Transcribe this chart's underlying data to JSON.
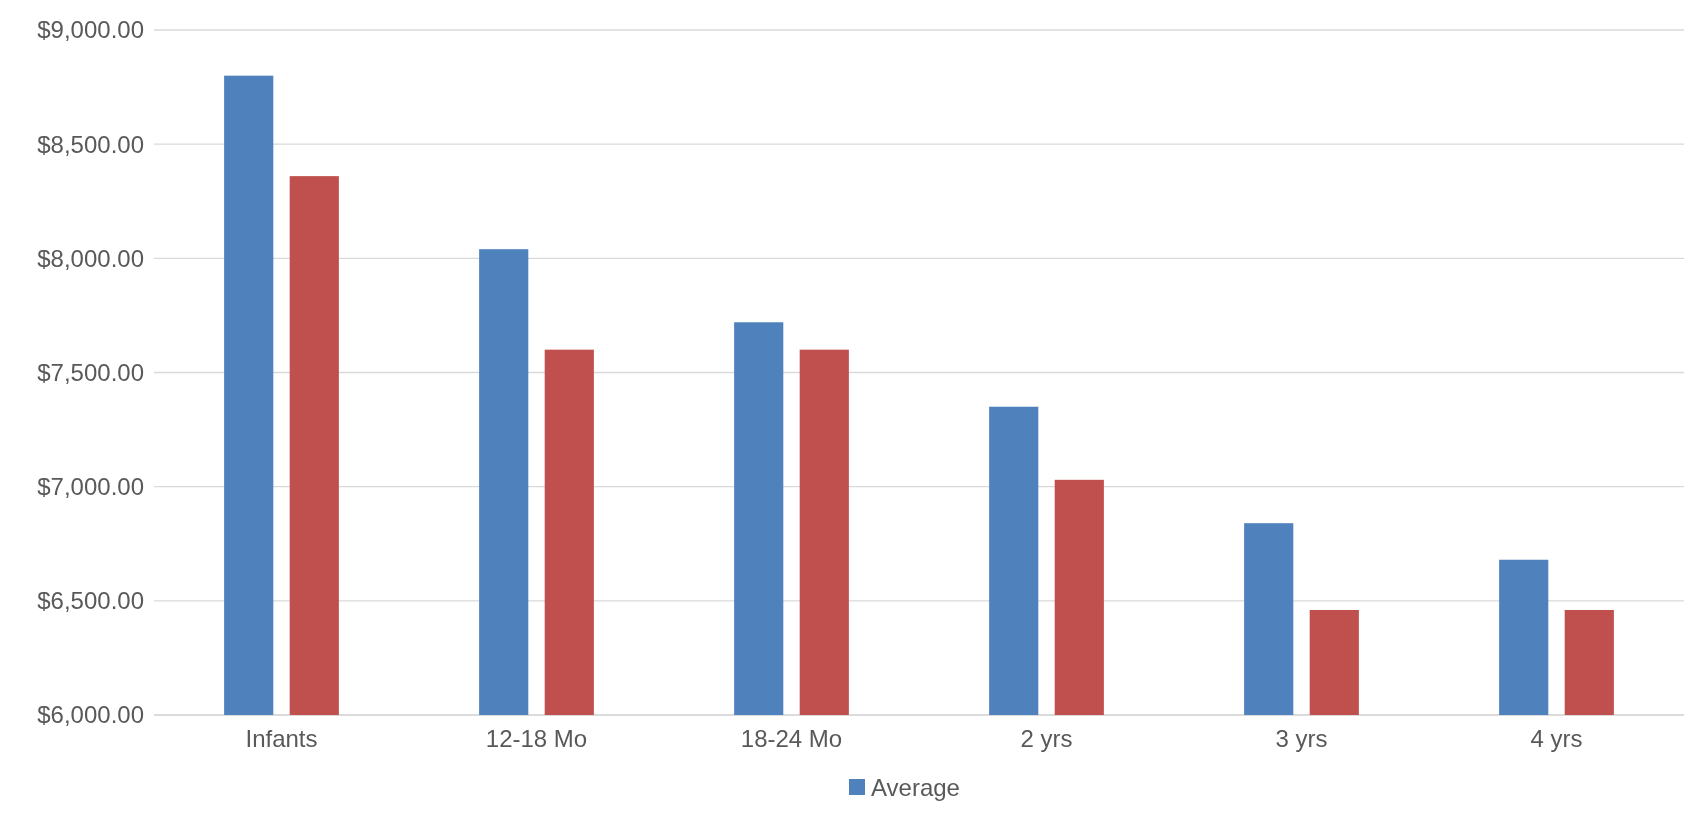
{
  "chart_data": {
    "type": "bar",
    "categories": [
      "Infants",
      "12-18 Mo",
      "18-24 Mo",
      "2 yrs",
      "3 yrs",
      "4 yrs"
    ],
    "series": [
      {
        "name": "Average",
        "color": "#4f81bd",
        "values": [
          8800,
          8040,
          7720,
          7350,
          6840,
          6680
        ]
      },
      {
        "color": "#c0504d",
        "values": [
          8360,
          7600,
          7600,
          7030,
          6460,
          6460
        ]
      }
    ],
    "ylim": [
      6000,
      9000
    ],
    "yticks": [
      {
        "value": 6000,
        "label": "$6,000.00"
      },
      {
        "value": 6500,
        "label": "$6,500.00"
      },
      {
        "value": 7000,
        "label": "$7,000.00"
      },
      {
        "value": 7500,
        "label": "$7,500.00"
      },
      {
        "value": 8000,
        "label": "$8,000.00"
      },
      {
        "value": 8500,
        "label": "$8,500.00"
      },
      {
        "value": 9000,
        "label": "$9,000.00"
      }
    ],
    "grid": "y",
    "legend": "bottom"
  }
}
